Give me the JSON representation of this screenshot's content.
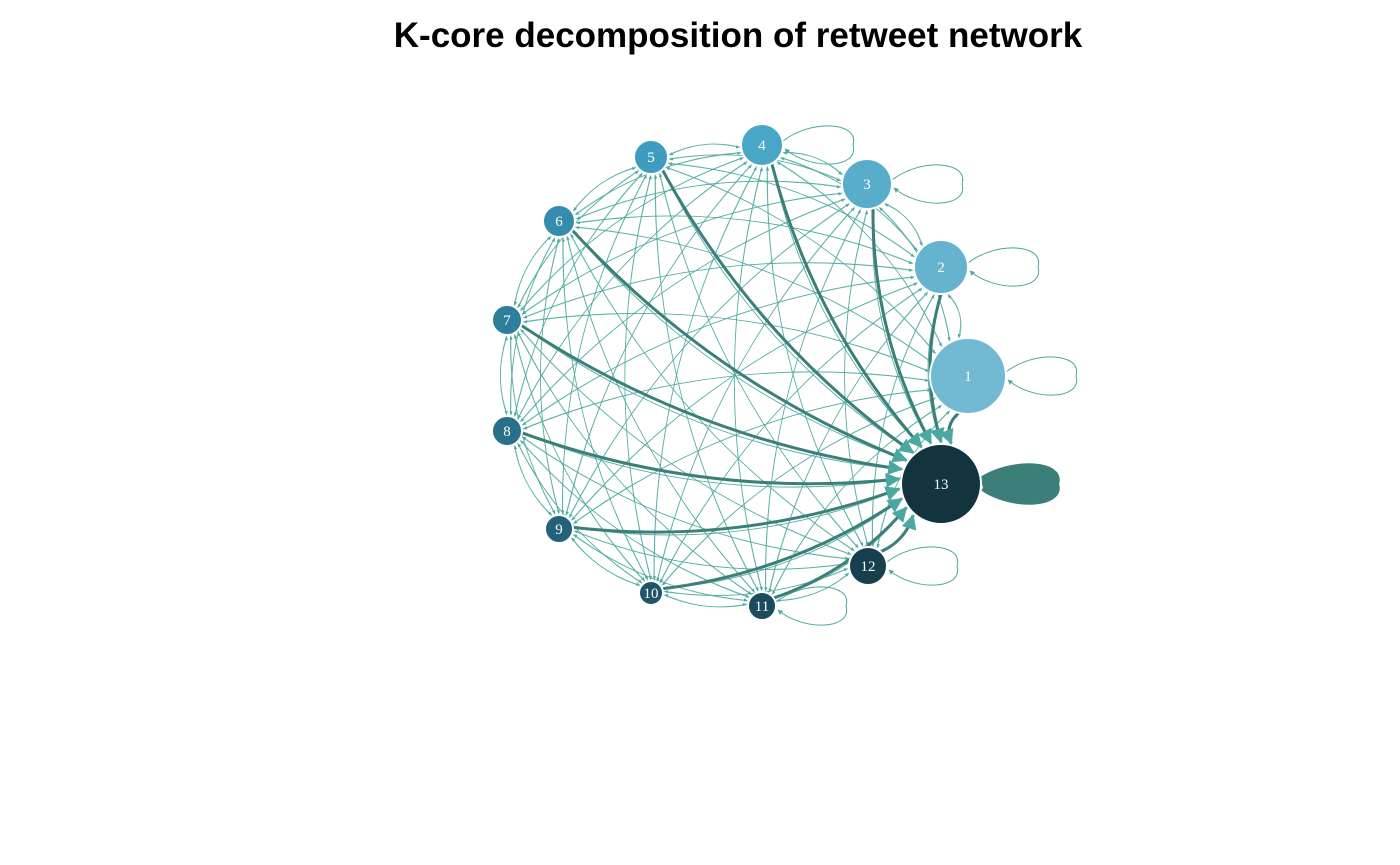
{
  "title": "K-core decomposition of retweet network",
  "colors": {
    "edge": "#4aa8a0",
    "edge_heavy": "#3b7f78",
    "node_stroke": "#ffffff"
  },
  "graph": {
    "nodes": [
      {
        "id": "1",
        "label": "1",
        "color": "#72bad2"
      },
      {
        "id": "2",
        "label": "2",
        "color": "#65b3cf"
      },
      {
        "id": "3",
        "label": "3",
        "color": "#58adcb"
      },
      {
        "id": "4",
        "label": "4",
        "color": "#48a6c6"
      },
      {
        "id": "5",
        "label": "5",
        "color": "#3e9dbf"
      },
      {
        "id": "6",
        "label": "6",
        "color": "#368cac"
      },
      {
        "id": "7",
        "label": "7",
        "color": "#2e7d9a"
      },
      {
        "id": "8",
        "label": "8",
        "color": "#296f89"
      },
      {
        "id": "9",
        "label": "9",
        "color": "#24627a"
      },
      {
        "id": "10",
        "label": "10",
        "color": "#1f556a"
      },
      {
        "id": "11",
        "label": "11",
        "color": "#1b4b5d"
      },
      {
        "id": "12",
        "label": "12",
        "color": "#173f4d"
      },
      {
        "id": "13",
        "label": "13",
        "color": "#12343e"
      }
    ],
    "self_loops": [
      "1",
      "2",
      "3",
      "4",
      "11",
      "12",
      "13"
    ],
    "heavy_edges": [
      [
        "5",
        "13"
      ],
      [
        "6",
        "13"
      ],
      [
        "7",
        "13"
      ],
      [
        "8",
        "13"
      ],
      [
        "9",
        "13"
      ],
      [
        "10",
        "13"
      ],
      [
        "11",
        "13"
      ],
      [
        "4",
        "13"
      ],
      [
        "3",
        "13"
      ],
      [
        "2",
        "13"
      ],
      [
        "1",
        "13"
      ],
      [
        "12",
        "13"
      ]
    ]
  }
}
